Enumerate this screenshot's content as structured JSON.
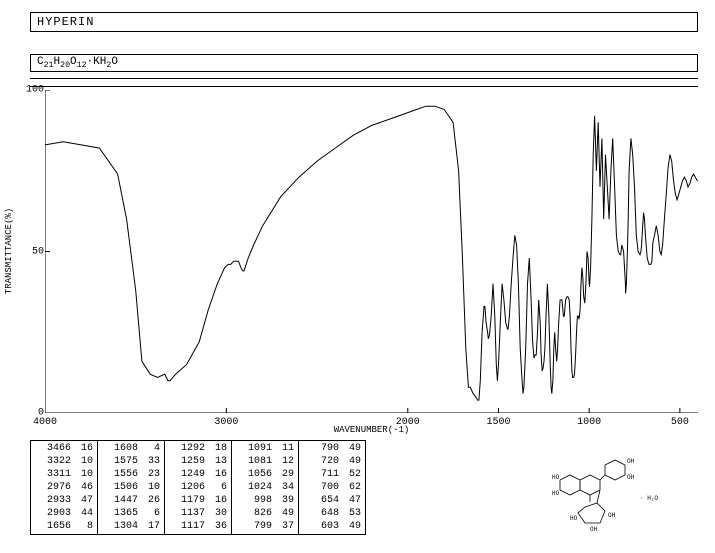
{
  "header": {
    "title": "HYPERIN",
    "formula_html": "C<sub>21</sub>H<sub>20</sub>O<sub>12</sub>·KH<sub>2</sub>O"
  },
  "chart": {
    "type": "line",
    "xlabel": "WAVENUMBER(-1)",
    "ylabel": "TRANSMITTANCE(%)",
    "xlim": [
      4000,
      400
    ],
    "ylim": [
      0,
      100
    ],
    "xticks": [
      4000,
      3000,
      2000,
      1500,
      1000,
      500
    ],
    "yticks": [
      0,
      50,
      100
    ],
    "line_color": "#000000",
    "line_width": 1,
    "background_color": "#ffffff",
    "axis_color": "#000000",
    "tick_len": 5,
    "data": [
      [
        4000,
        83
      ],
      [
        3900,
        84
      ],
      [
        3800,
        83
      ],
      [
        3700,
        82
      ],
      [
        3600,
        74
      ],
      [
        3550,
        60
      ],
      [
        3500,
        38
      ],
      [
        3466,
        16
      ],
      [
        3420,
        12
      ],
      [
        3380,
        11
      ],
      [
        3340,
        12
      ],
      [
        3322,
        10
      ],
      [
        3311,
        10
      ],
      [
        3280,
        12
      ],
      [
        3220,
        15
      ],
      [
        3150,
        22
      ],
      [
        3100,
        32
      ],
      [
        3050,
        40
      ],
      [
        3010,
        45
      ],
      [
        2990,
        46
      ],
      [
        2976,
        46
      ],
      [
        2960,
        47
      ],
      [
        2945,
        47
      ],
      [
        2933,
        47
      ],
      [
        2920,
        45
      ],
      [
        2910,
        44
      ],
      [
        2903,
        44
      ],
      [
        2880,
        48
      ],
      [
        2850,
        52
      ],
      [
        2800,
        58
      ],
      [
        2700,
        67
      ],
      [
        2600,
        73
      ],
      [
        2500,
        78
      ],
      [
        2400,
        82
      ],
      [
        2300,
        86
      ],
      [
        2200,
        89
      ],
      [
        2100,
        91
      ],
      [
        2000,
        93
      ],
      [
        1950,
        94
      ],
      [
        1900,
        95
      ],
      [
        1850,
        95
      ],
      [
        1800,
        94
      ],
      [
        1750,
        90
      ],
      [
        1720,
        75
      ],
      [
        1700,
        50
      ],
      [
        1680,
        20
      ],
      [
        1666,
        8
      ],
      [
        1656,
        8
      ],
      [
        1640,
        6
      ],
      [
        1625,
        5
      ],
      [
        1615,
        4
      ],
      [
        1608,
        4
      ],
      [
        1600,
        10
      ],
      [
        1590,
        25
      ],
      [
        1580,
        33
      ],
      [
        1575,
        33
      ],
      [
        1568,
        28
      ],
      [
        1560,
        25
      ],
      [
        1556,
        23
      ],
      [
        1550,
        24
      ],
      [
        1540,
        30
      ],
      [
        1530,
        40
      ],
      [
        1520,
        30
      ],
      [
        1512,
        15
      ],
      [
        1506,
        10
      ],
      [
        1500,
        15
      ],
      [
        1490,
        28
      ],
      [
        1480,
        40
      ],
      [
        1470,
        35
      ],
      [
        1460,
        28
      ],
      [
        1450,
        26
      ],
      [
        1447,
        26
      ],
      [
        1440,
        30
      ],
      [
        1430,
        40
      ],
      [
        1420,
        48
      ],
      [
        1410,
        55
      ],
      [
        1400,
        52
      ],
      [
        1390,
        40
      ],
      [
        1380,
        20
      ],
      [
        1370,
        10
      ],
      [
        1365,
        6
      ],
      [
        1360,
        8
      ],
      [
        1350,
        20
      ],
      [
        1340,
        40
      ],
      [
        1330,
        48
      ],
      [
        1320,
        35
      ],
      [
        1312,
        22
      ],
      [
        1304,
        17
      ],
      [
        1298,
        18
      ],
      [
        1292,
        18
      ],
      [
        1285,
        25
      ],
      [
        1278,
        35
      ],
      [
        1270,
        28
      ],
      [
        1265,
        18
      ],
      [
        1259,
        13
      ],
      [
        1254,
        14
      ],
      [
        1249,
        16
      ],
      [
        1244,
        20
      ],
      [
        1238,
        30
      ],
      [
        1230,
        40
      ],
      [
        1222,
        30
      ],
      [
        1215,
        15
      ],
      [
        1210,
        8
      ],
      [
        1206,
        6
      ],
      [
        1200,
        10
      ],
      [
        1195,
        20
      ],
      [
        1190,
        25
      ],
      [
        1185,
        20
      ],
      [
        1179,
        16
      ],
      [
        1174,
        20
      ],
      [
        1168,
        28
      ],
      [
        1160,
        35
      ],
      [
        1150,
        35
      ],
      [
        1142,
        30
      ],
      [
        1137,
        30
      ],
      [
        1130,
        35
      ],
      [
        1122,
        36
      ],
      [
        1117,
        36
      ],
      [
        1110,
        35
      ],
      [
        1105,
        30
      ],
      [
        1100,
        20
      ],
      [
        1095,
        13
      ],
      [
        1091,
        11
      ],
      [
        1086,
        11
      ],
      [
        1081,
        12
      ],
      [
        1075,
        18
      ],
      [
        1070,
        25
      ],
      [
        1065,
        30
      ],
      [
        1060,
        30
      ],
      [
        1056,
        29
      ],
      [
        1050,
        32
      ],
      [
        1045,
        40
      ],
      [
        1040,
        45
      ],
      [
        1035,
        42
      ],
      [
        1030,
        36
      ],
      [
        1024,
        34
      ],
      [
        1018,
        40
      ],
      [
        1012,
        50
      ],
      [
        1006,
        48
      ],
      [
        1000,
        40
      ],
      [
        998,
        39
      ],
      [
        992,
        45
      ],
      [
        985,
        60
      ],
      [
        978,
        80
      ],
      [
        970,
        92
      ],
      [
        960,
        75
      ],
      [
        950,
        90
      ],
      [
        940,
        70
      ],
      [
        930,
        85
      ],
      [
        920,
        60
      ],
      [
        910,
        80
      ],
      [
        900,
        70
      ],
      [
        890,
        60
      ],
      [
        880,
        75
      ],
      [
        870,
        85
      ],
      [
        860,
        70
      ],
      [
        850,
        55
      ],
      [
        840,
        50
      ],
      [
        830,
        49
      ],
      [
        826,
        49
      ],
      [
        820,
        52
      ],
      [
        810,
        50
      ],
      [
        800,
        40
      ],
      [
        799,
        37
      ],
      [
        795,
        40
      ],
      [
        790,
        49
      ],
      [
        785,
        60
      ],
      [
        780,
        75
      ],
      [
        770,
        85
      ],
      [
        760,
        80
      ],
      [
        750,
        70
      ],
      [
        740,
        55
      ],
      [
        730,
        50
      ],
      [
        720,
        49
      ],
      [
        715,
        50
      ],
      [
        711,
        52
      ],
      [
        705,
        58
      ],
      [
        700,
        62
      ],
      [
        695,
        60
      ],
      [
        690,
        55
      ],
      [
        680,
        48
      ],
      [
        670,
        46
      ],
      [
        660,
        46
      ],
      [
        654,
        47
      ],
      [
        650,
        52
      ],
      [
        648,
        53
      ],
      [
        640,
        55
      ],
      [
        630,
        58
      ],
      [
        620,
        55
      ],
      [
        610,
        50
      ],
      [
        603,
        49
      ],
      [
        595,
        52
      ],
      [
        585,
        60
      ],
      [
        575,
        68
      ],
      [
        565,
        76
      ],
      [
        555,
        80
      ],
      [
        545,
        78
      ],
      [
        535,
        72
      ],
      [
        525,
        68
      ],
      [
        515,
        66
      ],
      [
        505,
        68
      ],
      [
        495,
        70
      ],
      [
        485,
        72
      ],
      [
        475,
        73
      ],
      [
        465,
        72
      ],
      [
        455,
        70
      ],
      [
        445,
        71
      ],
      [
        435,
        73
      ],
      [
        425,
        74
      ],
      [
        415,
        73
      ],
      [
        405,
        72
      ],
      [
        400,
        72
      ]
    ]
  },
  "peak_table": {
    "font_size": 10,
    "columns": [
      [
        [
          3466,
          16
        ],
        [
          3322,
          10
        ],
        [
          3311,
          10
        ],
        [
          2976,
          46
        ],
        [
          2933,
          47
        ],
        [
          2903,
          44
        ],
        [
          1656,
          8
        ]
      ],
      [
        [
          1608,
          4
        ],
        [
          1575,
          33
        ],
        [
          1556,
          23
        ],
        [
          1506,
          10
        ],
        [
          1447,
          26
        ],
        [
          1365,
          6
        ],
        [
          1304,
          17
        ]
      ],
      [
        [
          1292,
          18
        ],
        [
          1259,
          13
        ],
        [
          1249,
          16
        ],
        [
          1206,
          6
        ],
        [
          1179,
          16
        ],
        [
          1137,
          30
        ],
        [
          1117,
          36
        ]
      ],
      [
        [
          1091,
          11
        ],
        [
          1081,
          12
        ],
        [
          1056,
          29
        ],
        [
          1024,
          34
        ],
        [
          998,
          39
        ],
        [
          826,
          49
        ],
        [
          799,
          37
        ]
      ],
      [
        [
          790,
          49
        ],
        [
          720,
          49
        ],
        [
          711,
          52
        ],
        [
          700,
          62
        ],
        [
          654,
          47
        ],
        [
          648,
          53
        ],
        [
          603,
          49
        ]
      ]
    ]
  },
  "molecule": {
    "stroke": "#000000",
    "fill": "none",
    "label": "structural formula"
  }
}
